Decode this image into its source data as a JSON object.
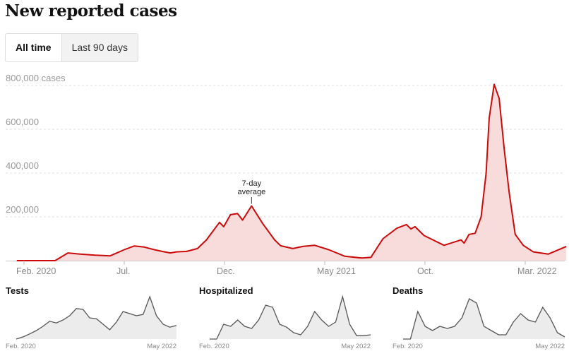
{
  "title": "New reported cases",
  "toggle": {
    "all_time": "All time",
    "last_90": "Last 90 days"
  },
  "colors": {
    "line": "#cc0a0a",
    "fill": "#f8dcdc",
    "mini_line": "#555555",
    "mini_fill": "#ececec"
  },
  "chart_data": [
    {
      "type": "area",
      "title": "New reported cases",
      "ylabel": "cases",
      "ylim": [
        0,
        800000
      ],
      "yticks": [
        {
          "v": 200000,
          "label": "200,000"
        },
        {
          "v": 400000,
          "label": "400,000"
        },
        {
          "v": 600000,
          "label": "600,000"
        },
        {
          "v": 800000,
          "label": "800,000 cases"
        }
      ],
      "x_unit": "months since Feb. 2020",
      "xticks": [
        {
          "m": 0,
          "label": "Feb. 2020"
        },
        {
          "m": 5,
          "label": "Jul."
        },
        {
          "m": 10,
          "label": "Dec."
        },
        {
          "m": 15,
          "label": "May 2021"
        },
        {
          "m": 20,
          "label": "Oct."
        },
        {
          "m": 25,
          "label": "Mar. 2022"
        }
      ],
      "grid": true,
      "annotation": {
        "line1": "7-day",
        "line2": "average",
        "m": 11.35,
        "v": 250000
      },
      "series": [
        {
          "name": "7-day average",
          "points": [
            [
              -0.36,
              0
            ],
            [
              1.55,
              0
            ],
            [
              2.19,
              35000
            ],
            [
              2.8,
              30000
            ],
            [
              3.55,
              25000
            ],
            [
              4.3,
              22000
            ],
            [
              5.0,
              50000
            ],
            [
              5.5,
              67000
            ],
            [
              6.0,
              62000
            ],
            [
              6.5,
              50000
            ],
            [
              6.9,
              42000
            ],
            [
              7.3,
              35000
            ],
            [
              7.6,
              40000
            ],
            [
              8.1,
              42000
            ],
            [
              8.65,
              55000
            ],
            [
              9.1,
              95000
            ],
            [
              9.75,
              175000
            ],
            [
              9.96,
              155000
            ],
            [
              10.3,
              210000
            ],
            [
              10.65,
              215000
            ],
            [
              10.9,
              185000
            ],
            [
              11.35,
              250000
            ],
            [
              11.9,
              170000
            ],
            [
              12.5,
              95000
            ],
            [
              12.8,
              68000
            ],
            [
              13.4,
              55000
            ],
            [
              13.9,
              65000
            ],
            [
              14.5,
              70000
            ],
            [
              15.2,
              50000
            ],
            [
              16.0,
              20000
            ],
            [
              16.85,
              12000
            ],
            [
              17.3,
              15000
            ],
            [
              17.9,
              100000
            ],
            [
              18.6,
              148000
            ],
            [
              19.07,
              165000
            ],
            [
              19.3,
              145000
            ],
            [
              19.5,
              155000
            ],
            [
              19.95,
              115000
            ],
            [
              20.95,
              70000
            ],
            [
              21.8,
              95000
            ],
            [
              21.95,
              80000
            ],
            [
              22.2,
              120000
            ],
            [
              22.5,
              125000
            ],
            [
              22.8,
              200000
            ],
            [
              23.05,
              400000
            ],
            [
              23.2,
              650000
            ],
            [
              23.45,
              805000
            ],
            [
              23.7,
              740000
            ],
            [
              23.95,
              510000
            ],
            [
              24.2,
              310000
            ],
            [
              24.5,
              120000
            ],
            [
              24.9,
              70000
            ],
            [
              25.4,
              40000
            ],
            [
              26.15,
              30000
            ],
            [
              27.05,
              65000
            ]
          ]
        }
      ]
    },
    {
      "type": "area",
      "title": "Tests",
      "x_start": "Feb. 2020",
      "x_end": "May 2022",
      "ylim": [
        0,
        1
      ],
      "values": [
        0,
        0.05,
        0.12,
        0.2,
        0.3,
        0.42,
        0.38,
        0.45,
        0.55,
        0.72,
        0.7,
        0.5,
        0.48,
        0.35,
        0.22,
        0.4,
        0.65,
        0.6,
        0.55,
        0.58,
        1.0,
        0.55,
        0.35,
        0.28,
        0.32
      ]
    },
    {
      "type": "area",
      "title": "Hospitalized",
      "x_start": "Feb. 2020",
      "x_end": "May 2022",
      "ylim": [
        0,
        1
      ],
      "values": [
        0,
        0,
        0.35,
        0.3,
        0.45,
        0.3,
        0.25,
        0.45,
        0.8,
        0.75,
        0.35,
        0.28,
        0.15,
        0.1,
        0.3,
        0.65,
        0.45,
        0.3,
        0.4,
        1.0,
        0.35,
        0.08,
        0.08,
        0.1
      ]
    },
    {
      "type": "area",
      "title": "Deaths",
      "x_start": "Feb. 2020",
      "x_end": "May 2022",
      "ylim": [
        0,
        1
      ],
      "values": [
        0,
        0,
        0.65,
        0.3,
        0.2,
        0.3,
        0.25,
        0.3,
        0.5,
        0.95,
        0.85,
        0.3,
        0.2,
        0.1,
        0.1,
        0.4,
        0.6,
        0.45,
        0.4,
        0.75,
        0.5,
        0.15,
        0.05
      ]
    }
  ]
}
